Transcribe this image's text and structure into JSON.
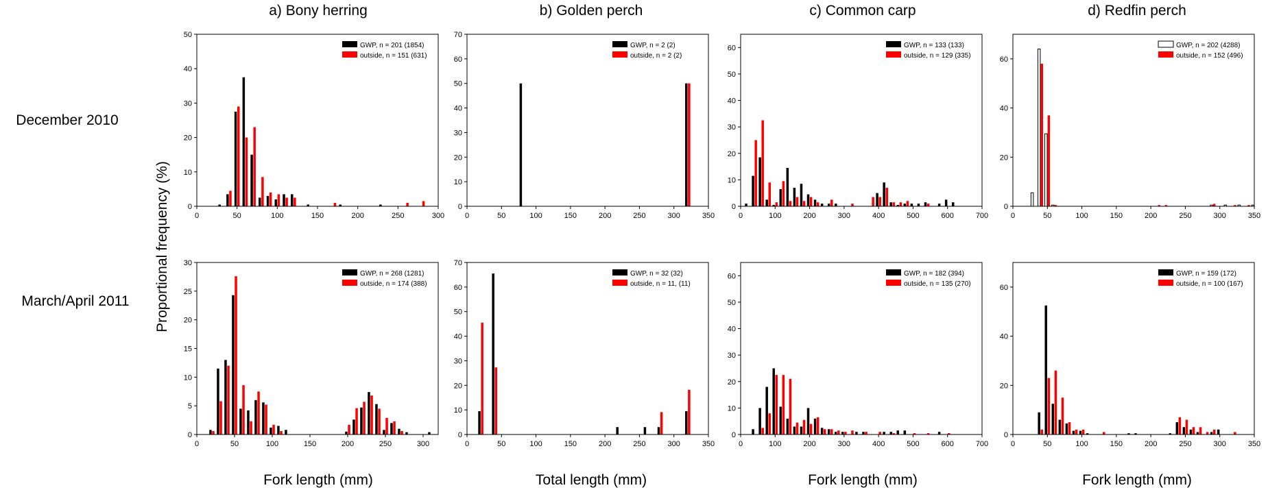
{
  "figure": {
    "column_titles": [
      "a) Bony herring",
      "b) Golden perch",
      "c) Common carp",
      "d) Redfin perch"
    ],
    "row_labels": [
      "December 2010",
      "March/April 2011"
    ],
    "ylabel": "Proportional frequency (%)",
    "xlabels": [
      "Fork length (mm)",
      "Total length (mm)",
      "Fork length (mm)",
      "Fork length (mm)"
    ]
  },
  "colors": {
    "gwp": "#000000",
    "outside": "#ff0000",
    "axis": "#000000"
  },
  "chart_data": [
    {
      "type": "bar",
      "panel": "dec-bony-herring",
      "xlim": [
        0,
        300
      ],
      "ylim": [
        0,
        50
      ],
      "xticks": [
        0,
        50,
        100,
        150,
        200,
        250,
        300
      ],
      "yticks": [
        0,
        10,
        20,
        30,
        40,
        50
      ],
      "legend": [
        "GWP, n = 201 (1854)",
        "outside, n = 151 (631)"
      ],
      "series": [
        {
          "name": "GWP",
          "style": "solid",
          "x": [
            30,
            40,
            50,
            60,
            70,
            80,
            90,
            100,
            110,
            120,
            140,
            180,
            230
          ],
          "values": [
            0.5,
            3.5,
            27.5,
            37.5,
            15,
            2.5,
            3,
            2,
            3.5,
            3.5,
            0.5,
            0.5,
            0.5
          ]
        },
        {
          "name": "outside",
          "x": [
            40,
            50,
            60,
            70,
            80,
            90,
            100,
            110,
            120,
            170,
            260,
            280
          ],
          "values": [
            4.5,
            29,
            20,
            23,
            8.5,
            4,
            3.5,
            2.5,
            2.5,
            1,
            1,
            1.5
          ]
        }
      ]
    },
    {
      "type": "bar",
      "panel": "dec-golden-perch",
      "xlim": [
        0,
        350
      ],
      "ylim": [
        0,
        70
      ],
      "xticks": [
        0,
        50,
        100,
        150,
        200,
        250,
        300,
        350
      ],
      "yticks": [
        0,
        10,
        20,
        30,
        40,
        50,
        60,
        70
      ],
      "legend": [
        "GWP, n = 2 (2)",
        "outside, n = 2 (2)"
      ],
      "series": [
        {
          "name": "GWP",
          "style": "solid",
          "x": [
            80,
            320
          ],
          "values": [
            50,
            50
          ]
        },
        {
          "name": "outside",
          "x": [
            320
          ],
          "values": [
            50
          ]
        }
      ]
    },
    {
      "type": "bar",
      "panel": "dec-common-carp",
      "xlim": [
        0,
        700
      ],
      "ylim": [
        0,
        65
      ],
      "xticks": [
        0,
        100,
        200,
        300,
        400,
        500,
        600,
        700
      ],
      "yticks": [
        0,
        10,
        20,
        30,
        40,
        50,
        60
      ],
      "legend": [
        "GWP, n = 133  (133)",
        "outside, n = 129 (335)"
      ],
      "series": [
        {
          "name": "GWP",
          "style": "solid",
          "x": [
            20,
            40,
            60,
            80,
            100,
            120,
            140,
            160,
            180,
            200,
            220,
            240,
            260,
            280,
            400,
            420,
            440,
            460,
            480,
            500,
            520,
            540,
            580,
            600,
            620
          ],
          "values": [
            1,
            11.5,
            18.5,
            2.5,
            0.5,
            6.5,
            14.5,
            7,
            8.5,
            4.5,
            2.5,
            1,
            1,
            1,
            5,
            9,
            1.5,
            0.5,
            1,
            1,
            1,
            1.5,
            1,
            2.5,
            1.5
          ]
        },
        {
          "name": "outside",
          "x": [
            40,
            60,
            80,
            100,
            120,
            140,
            160,
            180,
            200,
            220,
            260,
            320,
            380,
            400,
            420,
            440,
            460,
            480,
            540
          ],
          "values": [
            25,
            32.5,
            9,
            1.5,
            9.5,
            2,
            3.5,
            2,
            3.5,
            1.5,
            2.5,
            1,
            3.5,
            3.5,
            7,
            1.5,
            1.5,
            2,
            1
          ]
        }
      ]
    },
    {
      "type": "bar",
      "panel": "dec-redfin-perch",
      "xlim": [
        0,
        350
      ],
      "ylim": [
        0,
        70
      ],
      "xticks": [
        0,
        50,
        100,
        150,
        200,
        250,
        300,
        350
      ],
      "yticks": [
        0,
        20,
        40,
        60
      ],
      "legend": [
        "GWP, n = 202 (4288)",
        "outside, n = 152 (496)"
      ],
      "series": [
        {
          "name": "GWP",
          "style": "outline",
          "x": [
            30,
            40,
            50,
            60,
            290,
            310,
            330,
            350
          ],
          "values": [
            5.5,
            64,
            29.5,
            0.5,
            0.5,
            0.5,
            0.5,
            0.5
          ]
        },
        {
          "name": "outside",
          "x": [
            40,
            50,
            60,
            210,
            220,
            290,
            320,
            340
          ],
          "values": [
            58,
            37,
            0.5,
            0.5,
            0.5,
            1,
            0.5,
            0.5
          ]
        }
      ]
    },
    {
      "type": "bar",
      "panel": "mar-bony-herring",
      "xlim": [
        0,
        320
      ],
      "ylim": [
        0,
        30
      ],
      "xticks": [
        0,
        50,
        100,
        150,
        200,
        250,
        300
      ],
      "yticks": [
        0,
        5,
        10,
        15,
        20,
        25,
        30
      ],
      "legend": [
        "GWP, n = 268 (1281)",
        "outside, n = 174 (388)"
      ],
      "series": [
        {
          "name": "GWP",
          "style": "solid",
          "x": [
            20,
            30,
            40,
            50,
            60,
            70,
            80,
            90,
            100,
            110,
            120,
            200,
            210,
            220,
            230,
            240,
            250,
            260,
            270,
            280,
            310
          ],
          "values": [
            0.8,
            11.5,
            13,
            24.3,
            4.5,
            4.2,
            6,
            5.6,
            1.2,
            1.5,
            0.8,
            0.5,
            2.6,
            4.7,
            7.4,
            5.3,
            0.8,
            2,
            1,
            0.4,
            0.4
          ]
        },
        {
          "name": "outside",
          "x": [
            20,
            30,
            40,
            50,
            60,
            70,
            80,
            90,
            100,
            110,
            200,
            210,
            220,
            230,
            240,
            250,
            260,
            270
          ],
          "values": [
            0.6,
            5.8,
            12,
            27.6,
            8.6,
            2.3,
            7.5,
            5.2,
            1.7,
            0.6,
            1.7,
            4.6,
            5.7,
            6.8,
            4.5,
            2.9,
            2.3,
            0.6
          ]
        }
      ]
    },
    {
      "type": "bar",
      "panel": "mar-golden-perch",
      "xlim": [
        0,
        350
      ],
      "ylim": [
        0,
        70
      ],
      "xticks": [
        0,
        50,
        100,
        150,
        200,
        250,
        300,
        350
      ],
      "yticks": [
        0,
        10,
        20,
        30,
        40,
        50,
        60,
        70
      ],
      "legend": [
        "GWP, n = 32 (32)",
        "outside, n = 11, (11)"
      ],
      "series": [
        {
          "name": "GWP",
          "style": "solid",
          "x": [
            20,
            40,
            220,
            260,
            280,
            320
          ],
          "values": [
            9.5,
            65.5,
            3,
            3,
            3,
            9.5
          ]
        },
        {
          "name": "outside",
          "x": [
            20,
            40,
            280,
            320
          ],
          "values": [
            45.5,
            27.3,
            9.1,
            18.2
          ]
        }
      ]
    },
    {
      "type": "bar",
      "panel": "mar-common-carp",
      "xlim": [
        0,
        700
      ],
      "ylim": [
        0,
        65
      ],
      "xticks": [
        0,
        100,
        200,
        300,
        400,
        500,
        600,
        700
      ],
      "yticks": [
        0,
        10,
        20,
        30,
        40,
        50,
        60
      ],
      "legend": [
        "GWP, n = 182 (394)",
        "outside, n = 135 (270)"
      ],
      "series": [
        {
          "name": "GWP",
          "style": "solid",
          "x": [
            40,
            60,
            80,
            100,
            120,
            140,
            160,
            180,
            200,
            220,
            240,
            260,
            280,
            300,
            340,
            360,
            420,
            440,
            460,
            480,
            580
          ],
          "values": [
            2,
            10,
            18,
            25,
            10.5,
            6,
            3,
            3,
            10,
            6,
            2.5,
            2,
            1,
            1,
            1,
            1,
            1,
            1,
            1.5,
            1.5,
            1
          ]
        },
        {
          "name": "outside",
          "x": [
            60,
            80,
            100,
            120,
            140,
            160,
            180,
            200,
            220,
            240,
            260,
            280,
            300,
            320,
            360,
            400,
            440,
            500,
            540,
            600
          ],
          "values": [
            2.5,
            8,
            22.5,
            22.5,
            21,
            4.5,
            5.5,
            4,
            6.5,
            2,
            2,
            1.5,
            1,
            1.5,
            1,
            1,
            0.5,
            0.5,
            0.5,
            0.5
          ]
        }
      ]
    },
    {
      "type": "bar",
      "panel": "mar-redfin-perch",
      "xlim": [
        0,
        350
      ],
      "ylim": [
        0,
        70
      ],
      "xticks": [
        0,
        50,
        100,
        150,
        200,
        250,
        300,
        350
      ],
      "yticks": [
        0,
        20,
        40,
        60
      ],
      "legend": [
        "GWP, n = 159 (172)",
        "outside, n = 100 (167)"
      ],
      "series": [
        {
          "name": "GWP",
          "style": "solid",
          "x": [
            40,
            50,
            60,
            70,
            80,
            90,
            100,
            110,
            170,
            180,
            230,
            240,
            250,
            260,
            270,
            290,
            300
          ],
          "values": [
            9,
            52.5,
            12.5,
            6,
            4.5,
            1.5,
            1.5,
            0.5,
            0.5,
            0.5,
            0.5,
            5,
            3,
            2,
            1,
            1,
            2
          ]
        },
        {
          "name": "outside",
          "x": [
            40,
            50,
            60,
            70,
            80,
            90,
            100,
            130,
            240,
            250,
            260,
            270,
            280,
            290,
            320
          ],
          "values": [
            2,
            23,
            26,
            15,
            5,
            2,
            2,
            1,
            7,
            6,
            3,
            3,
            1,
            2,
            1
          ]
        }
      ]
    }
  ]
}
